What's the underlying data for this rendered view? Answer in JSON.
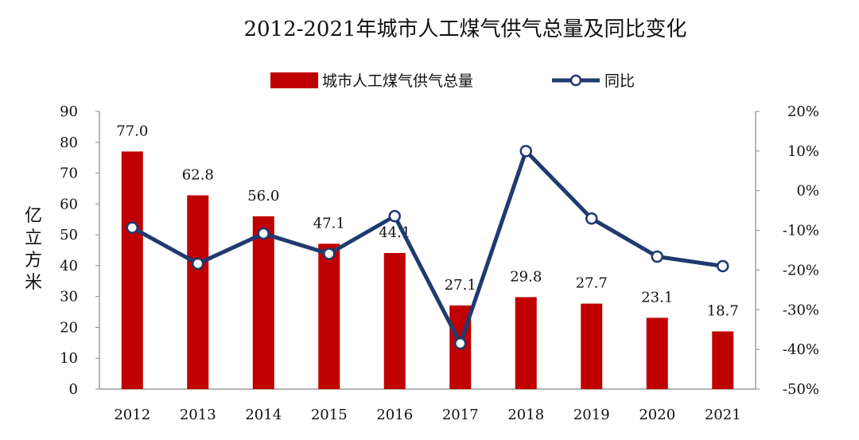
{
  "chart_data": {
    "type": "bar+line",
    "title": "2012-2021年城市人工煤气供气总量及同比变化",
    "categories": [
      "2012",
      "2013",
      "2014",
      "2015",
      "2016",
      "2017",
      "2018",
      "2019",
      "2020",
      "2021"
    ],
    "series": [
      {
        "name": "城市人工煤气供气总量",
        "type": "bar",
        "axis": "left",
        "values": [
          77.0,
          62.8,
          56.0,
          47.1,
          44.1,
          27.1,
          29.8,
          27.7,
          23.1,
          18.7
        ],
        "value_labels": [
          "77.0",
          "62.8",
          "56.0",
          "47.1",
          "44.1",
          "27.1",
          "29.8",
          "27.7",
          "23.1",
          "18.7"
        ]
      },
      {
        "name": "同比",
        "type": "line",
        "axis": "right",
        "values": [
          -9.3,
          -18.4,
          -10.8,
          -15.9,
          -6.4,
          -38.5,
          10.0,
          -7.0,
          -16.6,
          -19.0
        ]
      }
    ],
    "ylabel": "亿立方米",
    "ylim": [
      0,
      90
    ],
    "yticks": [
      "0",
      "10",
      "20",
      "30",
      "40",
      "50",
      "60",
      "70",
      "80",
      "90"
    ],
    "y2lim": [
      -50,
      20
    ],
    "y2ticks": [
      "-50%",
      "-40%",
      "-30%",
      "-20%",
      "-10%",
      "0%",
      "10%",
      "20%"
    ],
    "colors": {
      "bar": "#c00000",
      "line": "#1f3a6e",
      "marker_fill": "#ffffff",
      "axis": "#888888"
    },
    "legend_position": "top-center",
    "grid": false
  }
}
